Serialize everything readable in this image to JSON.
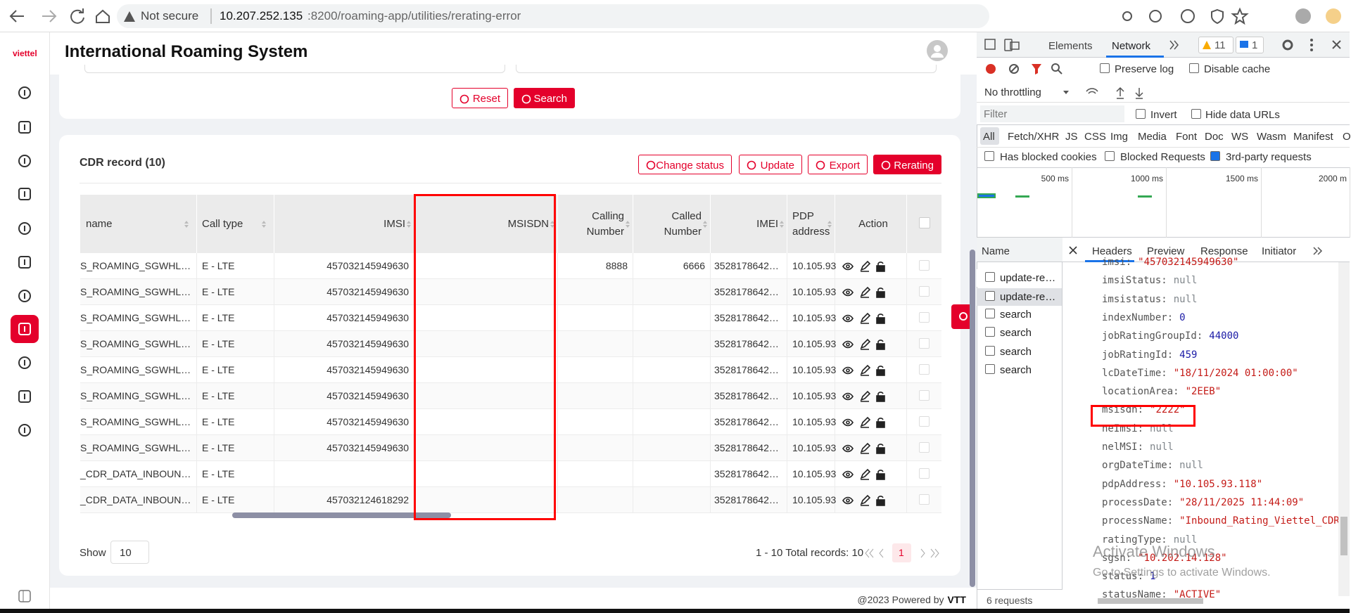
{
  "browser": {
    "security": "Not secure",
    "url_host": "10.207.252.135",
    "url_path": ":8200/roaming-app/utilities/rerating-error"
  },
  "sidebar": {
    "logo": "viettel"
  },
  "header": {
    "title": "International Roaming System"
  },
  "search_form": {
    "reset": "Reset",
    "search": "Search"
  },
  "cdr": {
    "title": "CDR record (10)",
    "actions": [
      "Change status",
      "Update",
      "Export",
      "Rerating"
    ],
    "columns": [
      "name",
      "Call type",
      "IMSI",
      "MSISDN",
      "Calling Number",
      "Called Number",
      "IMEI",
      "PDP address",
      "Action"
    ],
    "rows": [
      [
        "S_ROAMING_SGWHL…",
        "E - LTE",
        "457032145949630",
        null,
        "8888",
        "6666",
        "3528178642…",
        "10.105.93"
      ],
      [
        "S_ROAMING_SGWHL…",
        "E - LTE",
        "457032145949630",
        null,
        null,
        null,
        "3528178642…",
        "10.105.93"
      ],
      [
        "S_ROAMING_SGWHL…",
        "E - LTE",
        "457032145949630",
        null,
        null,
        null,
        "3528178642…",
        "10.105.93"
      ],
      [
        "S_ROAMING_SGWHL…",
        "E - LTE",
        "457032145949630",
        null,
        null,
        null,
        "3528178642…",
        "10.105.93"
      ],
      [
        "S_ROAMING_SGWHL…",
        "E - LTE",
        "457032145949630",
        null,
        null,
        null,
        "3528178642…",
        "10.105.93"
      ],
      [
        "S_ROAMING_SGWHL…",
        "E - LTE",
        "457032145949630",
        null,
        null,
        null,
        "3528178642…",
        "10.105.93"
      ],
      [
        "S_ROAMING_SGWHL…",
        "E - LTE",
        "457032145949630",
        null,
        null,
        null,
        "3528178642…",
        "10.105.93"
      ],
      [
        "S_ROAMING_SGWHL…",
        "E - LTE",
        "457032145949630",
        null,
        null,
        null,
        "3528178642…",
        "10.105.93"
      ],
      [
        "_CDR_DATA_INBOUN…",
        "E - LTE",
        null,
        null,
        null,
        null,
        "3528178642…",
        "10.105.93"
      ],
      [
        "_CDR_DATA_INBOUN…",
        "E - LTE",
        "457032124618292",
        null,
        null,
        null,
        "3528178642…",
        "10.105.93"
      ]
    ]
  },
  "pagination": {
    "show_label": "Show",
    "page_size": "10",
    "summary": "1 - 10 Total records: 10",
    "current_page": "1"
  },
  "footer": {
    "text": "@2023 Powered by",
    "brand": "VTT"
  },
  "devtools": {
    "tabs": [
      "Elements",
      "Network"
    ],
    "warnings": "11",
    "messages": "1",
    "preserve_log": "Preserve log",
    "disable_cache": "Disable cache",
    "throttling": "No throttling",
    "filter_placeholder": "Filter",
    "invert": "Invert",
    "hide_data_urls": "Hide data URLs",
    "type_filters": [
      "All",
      "Fetch/XHR",
      "JS",
      "CSS",
      "Img",
      "Media",
      "Font",
      "Doc",
      "WS",
      "Wasm",
      "Manifest",
      "O"
    ],
    "has_blocked_cookies": "Has blocked cookies",
    "blocked_requests": "Blocked Requests",
    "third_party": "3rd-party requests",
    "timeline_labels": [
      "500 ms",
      "1000 ms",
      "1500 ms",
      "2000 m"
    ],
    "name_header": "Name",
    "requests": [
      "update-re…",
      "update-re…",
      "search",
      "search",
      "search",
      "search"
    ],
    "detail_tabs": [
      "Headers",
      "Preview",
      "Response",
      "Initiator"
    ],
    "properties": [
      {
        "key": "imsi:",
        "value": "\"457032145949630\""
      },
      {
        "key": "imsiStatus:",
        "value": "null"
      },
      {
        "key": "imsistatus:",
        "value": "null"
      },
      {
        "key": "indexNumber:",
        "value": "0"
      },
      {
        "key": "jobRatingGroupId:",
        "value": "44000"
      },
      {
        "key": "jobRatingId:",
        "value": "459"
      },
      {
        "key": "lcDateTime:",
        "value": "\"18/11/2024 01:00:00\""
      },
      {
        "key": "locationArea:",
        "value": "\"2EEB\""
      },
      {
        "key": "msisdn:",
        "value": "\"2222\""
      },
      {
        "key": "neImsi:",
        "value": "null"
      },
      {
        "key": "nelMSI:",
        "value": "null"
      },
      {
        "key": "orgDateTime:",
        "value": "null"
      },
      {
        "key": "pdpAddress:",
        "value": "\"10.105.93.118\""
      },
      {
        "key": "processDate:",
        "value": "\"28/11/2025 11:44:09\""
      },
      {
        "key": "processName:",
        "value": "\"Inbound_Rating_Viettel_CDR_"
      },
      {
        "key": "ratingType:",
        "value": "null"
      },
      {
        "key": "sgsn:",
        "value": "\"10.202.14.128\""
      },
      {
        "key": "status:",
        "value": "1"
      },
      {
        "key": "statusName:",
        "value": "\"ACTIVE\""
      }
    ],
    "status_bar": "6 requests"
  },
  "watermark": {
    "title": "Activate Windows",
    "subtitle": "Go to Settings to activate Windows."
  }
}
